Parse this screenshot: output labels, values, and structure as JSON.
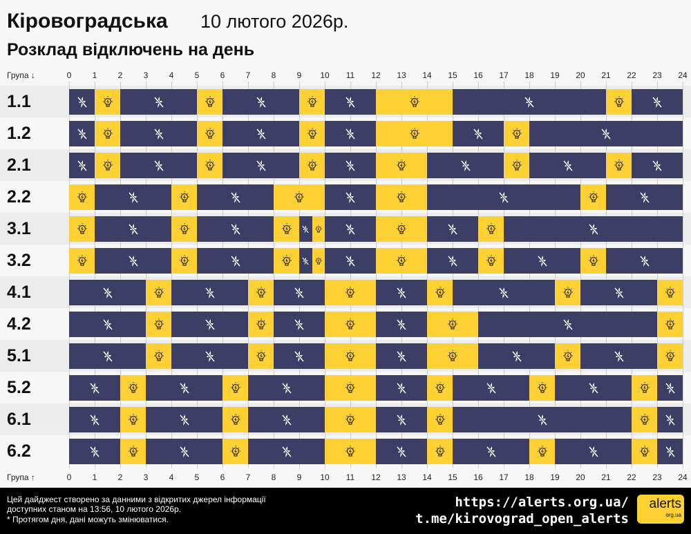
{
  "header": {
    "region": "Кіровоградська",
    "date": "10 лютого 2026р.",
    "subtitle": "Розклад відключень на день"
  },
  "axis": {
    "top_label": "Група ↓",
    "bottom_label": "Група ↑",
    "hours": [
      "0",
      "1",
      "2",
      "3",
      "4",
      "5",
      "6",
      "7",
      "8",
      "9",
      "10",
      "11",
      "12",
      "13",
      "14",
      "15",
      "16",
      "17",
      "18",
      "19",
      "20",
      "21",
      "22",
      "23",
      "24"
    ]
  },
  "colors": {
    "off": "#3d3e66",
    "on": "#fdd033"
  },
  "icons": {
    "off": "power-off-icon",
    "on": "light-bulb-icon"
  },
  "rows": [
    {
      "group": "1.1",
      "segments": [
        [
          0,
          1,
          "off"
        ],
        [
          1,
          2,
          "on"
        ],
        [
          2,
          5,
          "off"
        ],
        [
          5,
          6,
          "on"
        ],
        [
          6,
          9,
          "off"
        ],
        [
          9,
          10,
          "on"
        ],
        [
          10,
          12,
          "off"
        ],
        [
          12,
          15,
          "on"
        ],
        [
          15,
          21,
          "off"
        ],
        [
          21,
          22,
          "on"
        ],
        [
          22,
          24,
          "off"
        ]
      ]
    },
    {
      "group": "1.2",
      "segments": [
        [
          0,
          1,
          "off"
        ],
        [
          1,
          2,
          "on"
        ],
        [
          2,
          5,
          "off"
        ],
        [
          5,
          6,
          "on"
        ],
        [
          6,
          9,
          "off"
        ],
        [
          9,
          10,
          "on"
        ],
        [
          10,
          12,
          "off"
        ],
        [
          12,
          15,
          "on"
        ],
        [
          15,
          17,
          "off"
        ],
        [
          17,
          18,
          "on"
        ],
        [
          18,
          24,
          "off"
        ]
      ]
    },
    {
      "group": "2.1",
      "segments": [
        [
          0,
          1,
          "off"
        ],
        [
          1,
          2,
          "on"
        ],
        [
          2,
          5,
          "off"
        ],
        [
          5,
          6,
          "on"
        ],
        [
          6,
          9,
          "off"
        ],
        [
          9,
          10,
          "on"
        ],
        [
          10,
          12,
          "off"
        ],
        [
          12,
          14,
          "on"
        ],
        [
          14,
          17,
          "off"
        ],
        [
          17,
          18,
          "on"
        ],
        [
          18,
          21,
          "off"
        ],
        [
          21,
          22,
          "on"
        ],
        [
          22,
          24,
          "off"
        ]
      ]
    },
    {
      "group": "2.2",
      "segments": [
        [
          0,
          1,
          "on"
        ],
        [
          1,
          4,
          "off"
        ],
        [
          4,
          5,
          "on"
        ],
        [
          5,
          8,
          "off"
        ],
        [
          8,
          10,
          "on"
        ],
        [
          10,
          12,
          "off"
        ],
        [
          12,
          14,
          "on"
        ],
        [
          14,
          20,
          "off"
        ],
        [
          20,
          21,
          "on"
        ],
        [
          21,
          24,
          "off"
        ]
      ]
    },
    {
      "group": "3.1",
      "segments": [
        [
          0,
          1,
          "on"
        ],
        [
          1,
          4,
          "off"
        ],
        [
          4,
          5,
          "on"
        ],
        [
          5,
          8,
          "off"
        ],
        [
          8,
          9,
          "on"
        ],
        [
          9,
          9.5,
          "off"
        ],
        [
          9.5,
          10,
          "on"
        ],
        [
          10,
          12,
          "off"
        ],
        [
          12,
          14,
          "on"
        ],
        [
          14,
          16,
          "off"
        ],
        [
          16,
          17,
          "on"
        ],
        [
          17,
          24,
          "off"
        ]
      ]
    },
    {
      "group": "3.2",
      "segments": [
        [
          0,
          1,
          "on"
        ],
        [
          1,
          4,
          "off"
        ],
        [
          4,
          5,
          "on"
        ],
        [
          5,
          8,
          "off"
        ],
        [
          8,
          9,
          "on"
        ],
        [
          9,
          9.5,
          "off"
        ],
        [
          9.5,
          10,
          "on"
        ],
        [
          10,
          12,
          "off"
        ],
        [
          12,
          14,
          "on"
        ],
        [
          14,
          16,
          "off"
        ],
        [
          16,
          17,
          "on"
        ],
        [
          17,
          20,
          "off"
        ],
        [
          20,
          21,
          "on"
        ],
        [
          21,
          24,
          "off"
        ]
      ]
    },
    {
      "group": "4.1",
      "segments": [
        [
          0,
          3,
          "off"
        ],
        [
          3,
          4,
          "on"
        ],
        [
          4,
          7,
          "off"
        ],
        [
          7,
          8,
          "on"
        ],
        [
          8,
          10,
          "off"
        ],
        [
          10,
          12,
          "on"
        ],
        [
          12,
          14,
          "off"
        ],
        [
          14,
          15,
          "on"
        ],
        [
          15,
          19,
          "off"
        ],
        [
          19,
          20,
          "on"
        ],
        [
          20,
          23,
          "off"
        ],
        [
          23,
          24,
          "on"
        ]
      ]
    },
    {
      "group": "4.2",
      "segments": [
        [
          0,
          3,
          "off"
        ],
        [
          3,
          4,
          "on"
        ],
        [
          4,
          7,
          "off"
        ],
        [
          7,
          8,
          "on"
        ],
        [
          8,
          10,
          "off"
        ],
        [
          10,
          12,
          "on"
        ],
        [
          12,
          14,
          "off"
        ],
        [
          14,
          16,
          "on"
        ],
        [
          16,
          23,
          "off"
        ],
        [
          23,
          24,
          "on"
        ]
      ]
    },
    {
      "group": "5.1",
      "segments": [
        [
          0,
          3,
          "off"
        ],
        [
          3,
          4,
          "on"
        ],
        [
          4,
          7,
          "off"
        ],
        [
          7,
          8,
          "on"
        ],
        [
          8,
          10,
          "off"
        ],
        [
          10,
          12,
          "on"
        ],
        [
          12,
          14,
          "off"
        ],
        [
          14,
          16,
          "on"
        ],
        [
          16,
          19,
          "off"
        ],
        [
          19,
          20,
          "on"
        ],
        [
          20,
          23,
          "off"
        ],
        [
          23,
          24,
          "on"
        ]
      ]
    },
    {
      "group": "5.2",
      "segments": [
        [
          0,
          2,
          "off"
        ],
        [
          2,
          3,
          "on"
        ],
        [
          3,
          6,
          "off"
        ],
        [
          6,
          7,
          "on"
        ],
        [
          7,
          10,
          "off"
        ],
        [
          10,
          12,
          "on"
        ],
        [
          12,
          14,
          "off"
        ],
        [
          14,
          15,
          "on"
        ],
        [
          15,
          18,
          "off"
        ],
        [
          18,
          19,
          "on"
        ],
        [
          19,
          22,
          "off"
        ],
        [
          22,
          23,
          "on"
        ],
        [
          23,
          24,
          "off"
        ]
      ]
    },
    {
      "group": "6.1",
      "segments": [
        [
          0,
          2,
          "off"
        ],
        [
          2,
          3,
          "on"
        ],
        [
          3,
          6,
          "off"
        ],
        [
          6,
          7,
          "on"
        ],
        [
          7,
          10,
          "off"
        ],
        [
          10,
          12,
          "on"
        ],
        [
          12,
          14,
          "off"
        ],
        [
          14,
          15,
          "on"
        ],
        [
          15,
          22,
          "off"
        ],
        [
          22,
          23,
          "on"
        ],
        [
          23,
          24,
          "off"
        ]
      ]
    },
    {
      "group": "6.2",
      "segments": [
        [
          0,
          2,
          "off"
        ],
        [
          2,
          3,
          "on"
        ],
        [
          3,
          6,
          "off"
        ],
        [
          6,
          7,
          "on"
        ],
        [
          7,
          10,
          "off"
        ],
        [
          10,
          12,
          "on"
        ],
        [
          12,
          14,
          "off"
        ],
        [
          14,
          15,
          "on"
        ],
        [
          15,
          18,
          "off"
        ],
        [
          18,
          19,
          "on"
        ],
        [
          19,
          22,
          "off"
        ],
        [
          22,
          23,
          "on"
        ],
        [
          23,
          24,
          "off"
        ]
      ]
    }
  ],
  "footer": {
    "note1": "Цей дайджест створено за данними з відкритих джерел інформації",
    "note2": "доступних станом на 13:56, 10 лютого 2026р.",
    "note3": "* Протягом дня, дані можуть змінюватися.",
    "site": "https://alerts.org.ua/",
    "telegram": "t.me/kirovograd_open_alerts",
    "logo": "alerts",
    "logo_sub": "org.ua"
  }
}
